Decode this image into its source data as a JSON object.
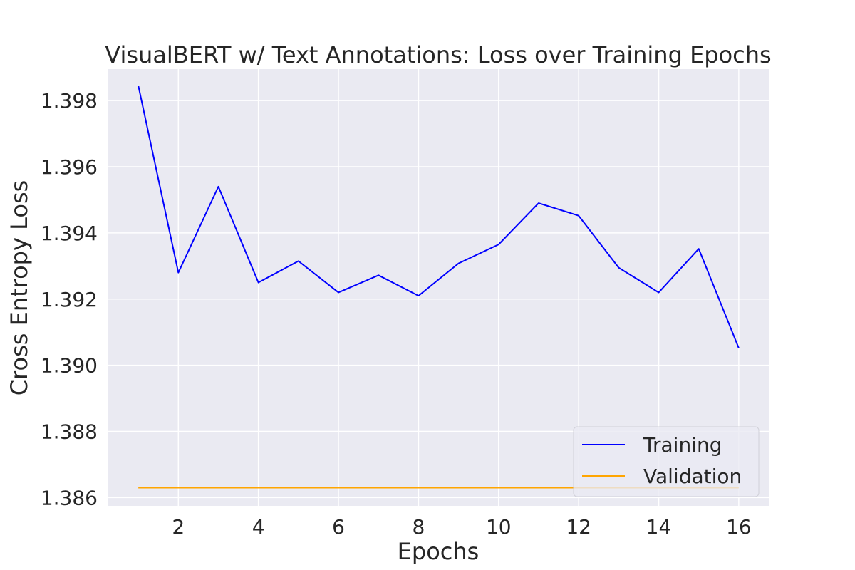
{
  "chart_data": {
    "type": "line",
    "title": "VisualBERT w/ Text Annotations: Loss over Training Epochs",
    "xlabel": "Epochs",
    "ylabel": "Cross Entropy Loss",
    "xlim": [
      0.25,
      16.75
    ],
    "ylim": [
      1.38575,
      1.39895
    ],
    "xticks": [
      2,
      4,
      6,
      8,
      10,
      12,
      14,
      16
    ],
    "yticks": [
      1.386,
      1.388,
      1.39,
      1.392,
      1.394,
      1.396,
      1.398
    ],
    "ytick_labels": [
      "1.386",
      "1.388",
      "1.390",
      "1.392",
      "1.394",
      "1.396",
      "1.398"
    ],
    "grid": true,
    "legend_position": "lower-right",
    "x": [
      1,
      2,
      3,
      4,
      5,
      6,
      7,
      8,
      9,
      10,
      11,
      12,
      13,
      14,
      15,
      16
    ],
    "series": [
      {
        "name": "Training",
        "color": "#0000ff",
        "values": [
          1.39845,
          1.3928,
          1.3954,
          1.3925,
          1.39315,
          1.3922,
          1.39272,
          1.3921,
          1.39308,
          1.39365,
          1.3949,
          1.39452,
          1.39295,
          1.3922,
          1.39352,
          1.39052
        ]
      },
      {
        "name": "Validation",
        "color": "#ffa500",
        "values": [
          1.3863,
          1.3863,
          1.3863,
          1.3863,
          1.3863,
          1.3863,
          1.3863,
          1.3863,
          1.3863,
          1.3863,
          1.3863,
          1.3863,
          1.3863,
          1.3863,
          1.3863,
          1.3863
        ]
      }
    ]
  }
}
